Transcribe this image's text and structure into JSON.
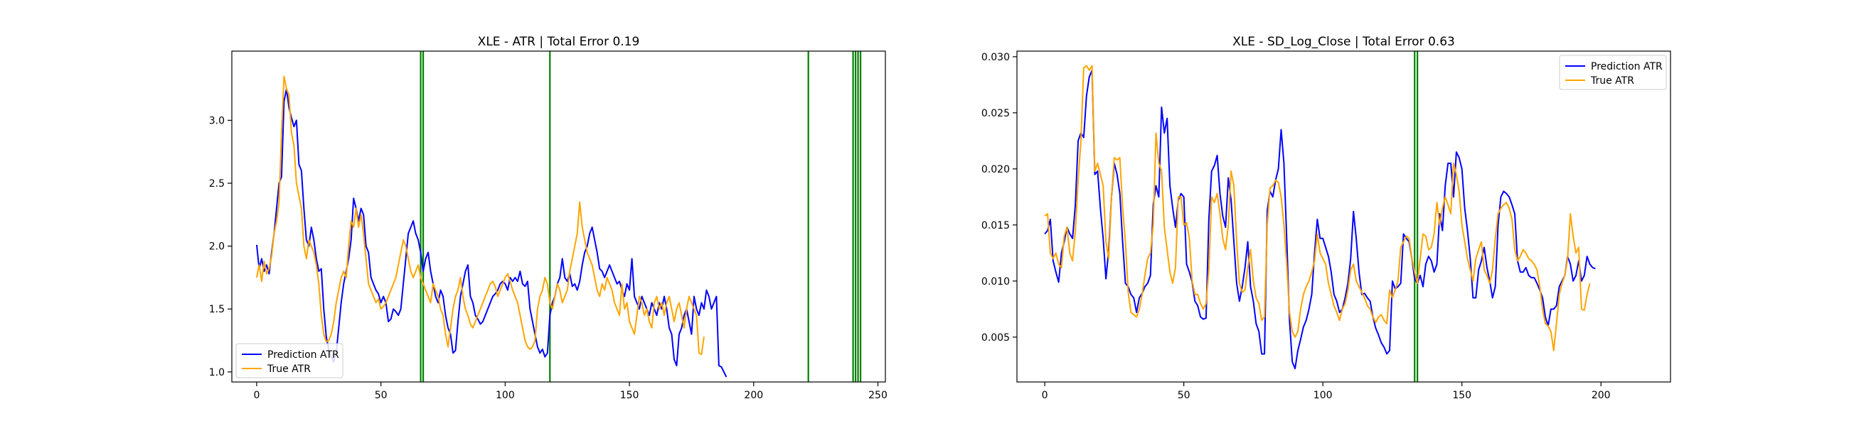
{
  "chart_data": [
    {
      "type": "line",
      "title": "XLE - ATR | Total Error 0.19",
      "xlabel": "",
      "ylabel": "",
      "xlim": [
        -10,
        253
      ],
      "ylim": [
        0.92,
        3.55
      ],
      "xticks": [
        0,
        50,
        100,
        150,
        200,
        250
      ],
      "yticks": [
        1.0,
        1.5,
        2.0,
        2.5,
        3.0
      ],
      "xtick_labels": [
        "0",
        "50",
        "100",
        "150",
        "200",
        "250"
      ],
      "ytick_labels": [
        "1.0",
        "1.5",
        "2.0",
        "2.5",
        "3.0"
      ],
      "legend_position": "lower-left",
      "grid": false,
      "vlines": [
        66,
        67,
        118,
        222,
        240,
        241,
        242,
        243
      ],
      "vline_color": "#008000",
      "series": [
        {
          "name": "Prediction ATR",
          "color": "#0000ff",
          "values": [
            2.01,
            1.82,
            1.9,
            1.8,
            1.85,
            1.78,
            1.95,
            2.1,
            2.3,
            2.5,
            2.55,
            3.15,
            3.25,
            3.1,
            3.02,
            2.95,
            3.0,
            2.65,
            2.6,
            2.3,
            2.05,
            2.0,
            2.15,
            2.05,
            1.9,
            1.8,
            1.82,
            1.5,
            1.28,
            1.18,
            1.12,
            1.08,
            1.15,
            1.35,
            1.55,
            1.7,
            1.8,
            1.9,
            2.05,
            2.38,
            2.3,
            2.2,
            2.3,
            2.25,
            2.0,
            1.95,
            1.75,
            1.7,
            1.65,
            1.62,
            1.55,
            1.6,
            1.55,
            1.4,
            1.42,
            1.5,
            1.48,
            1.45,
            1.5,
            1.7,
            1.9,
            2.1,
            2.15,
            2.2,
            2.1,
            2.05,
            1.95,
            1.8,
            1.9,
            1.95,
            1.8,
            1.7,
            1.6,
            1.55,
            1.65,
            1.6,
            1.45,
            1.35,
            1.3,
            1.15,
            1.17,
            1.4,
            1.6,
            1.7,
            1.8,
            1.85,
            1.6,
            1.55,
            1.45,
            1.42,
            1.38,
            1.4,
            1.45,
            1.5,
            1.55,
            1.6,
            1.62,
            1.65,
            1.7,
            1.72,
            1.7,
            1.65,
            1.75,
            1.72,
            1.75,
            1.72,
            1.8,
            1.7,
            1.68,
            1.72,
            1.5,
            1.4,
            1.3,
            1.2,
            1.15,
            1.18,
            1.12,
            1.15,
            1.45,
            1.55,
            1.6,
            1.7,
            1.75,
            1.9,
            1.75,
            1.72,
            1.78,
            1.68,
            1.7,
            1.65,
            1.72,
            1.85,
            1.95,
            2.0,
            2.1,
            2.15,
            2.05,
            1.95,
            1.82,
            1.8,
            1.75,
            1.8,
            1.85,
            1.8,
            1.75,
            1.7,
            1.72,
            1.65,
            1.6,
            1.7,
            1.65,
            1.9,
            1.6,
            1.55,
            1.5,
            1.6,
            1.55,
            1.5,
            1.45,
            1.55,
            1.5,
            1.45,
            1.55,
            1.5,
            1.6,
            1.5,
            1.35,
            1.3,
            1.1,
            1.05,
            1.3,
            1.35,
            1.45,
            1.5,
            1.4,
            1.3,
            1.6,
            1.5,
            1.45,
            1.55,
            1.5,
            1.65,
            1.6,
            1.5,
            1.55,
            1.6,
            1.05,
            1.04,
            1.0,
            0.96
          ]
        },
        {
          "name": "True ATR",
          "color": "#ffa500",
          "values": [
            1.75,
            1.85,
            1.72,
            1.88,
            1.78,
            1.82,
            1.92,
            2.1,
            2.2,
            2.35,
            2.9,
            3.35,
            3.25,
            3.2,
            2.9,
            2.8,
            2.5,
            2.4,
            2.3,
            2.0,
            1.9,
            2.05,
            2.0,
            1.95,
            1.85,
            1.7,
            1.45,
            1.3,
            1.24,
            1.25,
            1.3,
            1.4,
            1.55,
            1.65,
            1.75,
            1.8,
            1.75,
            2.0,
            2.2,
            2.15,
            2.3,
            2.15,
            2.25,
            2.1,
            1.9,
            1.7,
            1.65,
            1.6,
            1.55,
            1.58,
            1.5,
            1.52,
            1.55,
            1.6,
            1.65,
            1.7,
            1.75,
            1.85,
            1.95,
            2.05,
            2.0,
            1.9,
            1.8,
            1.75,
            1.8,
            1.85,
            1.75,
            1.7,
            1.65,
            1.6,
            1.55,
            1.7,
            1.65,
            1.6,
            1.5,
            1.45,
            1.3,
            1.2,
            1.35,
            1.5,
            1.6,
            1.65,
            1.75,
            1.6,
            1.5,
            1.45,
            1.38,
            1.35,
            1.4,
            1.45,
            1.5,
            1.55,
            1.6,
            1.65,
            1.7,
            1.72,
            1.68,
            1.6,
            1.65,
            1.7,
            1.75,
            1.78,
            1.72,
            1.65,
            1.6,
            1.55,
            1.45,
            1.35,
            1.25,
            1.2,
            1.18,
            1.2,
            1.25,
            1.5,
            1.6,
            1.65,
            1.75,
            1.7,
            1.55,
            1.5,
            1.6,
            1.7,
            1.65,
            1.55,
            1.6,
            1.65,
            1.8,
            1.9,
            2.0,
            2.1,
            2.35,
            2.15,
            2.05,
            1.95,
            1.9,
            1.85,
            1.75,
            1.65,
            1.6,
            1.7,
            1.65,
            1.75,
            1.7,
            1.65,
            1.55,
            1.5,
            1.45,
            1.7,
            1.5,
            1.55,
            1.4,
            1.35,
            1.3,
            1.45,
            1.6,
            1.55,
            1.45,
            1.5,
            1.4,
            1.35,
            1.55,
            1.6,
            1.5,
            1.55,
            1.45,
            1.55,
            1.6,
            1.5,
            1.4,
            1.5,
            1.55,
            1.45,
            1.35,
            1.5,
            1.6,
            1.55,
            1.5,
            1.45,
            1.15,
            1.14,
            1.28
          ]
        }
      ]
    },
    {
      "type": "line",
      "title": "XLE - SD_Log_Close | Total Error 0.63",
      "xlabel": "",
      "ylabel": "",
      "xlim": [
        -10,
        225
      ],
      "ylim": [
        0.001,
        0.0305
      ],
      "xticks": [
        0,
        50,
        100,
        150,
        200
      ],
      "yticks": [
        0.005,
        0.01,
        0.015,
        0.02,
        0.025,
        0.03
      ],
      "xtick_labels": [
        "0",
        "50",
        "100",
        "150",
        "200"
      ],
      "ytick_labels": [
        "0.005",
        "0.010",
        "0.015",
        "0.020",
        "0.025",
        "0.030"
      ],
      "legend_position": "upper-right",
      "grid": false,
      "vlines": [
        133,
        134
      ],
      "vline_color": "#008000",
      "series": [
        {
          "name": "Prediction ATR",
          "color": "#0000ff",
          "values": [
            0.0142,
            0.0145,
            0.0155,
            0.0118,
            0.0108,
            0.0099,
            0.0125,
            0.0135,
            0.0148,
            0.0142,
            0.0138,
            0.0168,
            0.0225,
            0.0232,
            0.0228,
            0.0265,
            0.0282,
            0.0288,
            0.0195,
            0.0198,
            0.0165,
            0.0138,
            0.0102,
            0.0128,
            0.0175,
            0.0205,
            0.0195,
            0.0178,
            0.0135,
            0.0098,
            0.0095,
            0.0088,
            0.0085,
            0.0072,
            0.0085,
            0.0089,
            0.0095,
            0.0098,
            0.0105,
            0.0168,
            0.0185,
            0.0175,
            0.0255,
            0.0232,
            0.0245,
            0.0185,
            0.0165,
            0.0148,
            0.0172,
            0.0178,
            0.0175,
            0.0115,
            0.0108,
            0.0099,
            0.0082,
            0.0078,
            0.0068,
            0.0066,
            0.0067,
            0.0155,
            0.0198,
            0.0203,
            0.0212,
            0.0178,
            0.0158,
            0.0148,
            0.0192,
            0.0172,
            0.0135,
            0.0098,
            0.0082,
            0.0095,
            0.0112,
            0.0135,
            0.0095,
            0.0082,
            0.0062,
            0.0055,
            0.0035,
            0.0035,
            0.0163,
            0.018,
            0.0175,
            0.019,
            0.02,
            0.0235,
            0.0205,
            0.0138,
            0.0065,
            0.0028,
            0.0022,
            0.0038,
            0.0048,
            0.0059,
            0.0065,
            0.0075,
            0.0088,
            0.0125,
            0.0155,
            0.0138,
            0.0138,
            0.013,
            0.0122,
            0.0108,
            0.0088,
            0.0082,
            0.0072,
            0.0075,
            0.0085,
            0.0098,
            0.012,
            0.0162,
            0.0138,
            0.0108,
            0.0088,
            0.0089,
            0.0085,
            0.0082,
            0.0068,
            0.0058,
            0.0052,
            0.0045,
            0.0041,
            0.0035,
            0.0038,
            0.01,
            0.0093,
            0.0095,
            0.0098,
            0.0142,
            0.0138,
            0.0135,
            0.012,
            0.0102,
            0.0098,
            0.0105,
            0.0095,
            0.0115,
            0.0122,
            0.0118,
            0.0108,
            0.0115,
            0.016,
            0.0145,
            0.0185,
            0.0205,
            0.0205,
            0.0175,
            0.0215,
            0.021,
            0.02,
            0.0165,
            0.0145,
            0.012,
            0.0085,
            0.0085,
            0.011,
            0.0118,
            0.013,
            0.0112,
            0.01,
            0.0085,
            0.0095,
            0.015,
            0.0175,
            0.018,
            0.0178,
            0.0175,
            0.0168,
            0.016,
            0.0118,
            0.0108,
            0.0108,
            0.0112,
            0.0105,
            0.0103,
            0.0103,
            0.0098,
            0.0092,
            0.0085,
            0.0068,
            0.006,
            0.0075,
            0.0075,
            0.0078,
            0.0095,
            0.01,
            0.0105,
            0.0122,
            0.0115,
            0.01,
            0.0105,
            0.0118,
            0.01,
            0.0105,
            0.0122,
            0.0115,
            0.0112,
            0.0111
          ]
        },
        {
          "name": "True ATR",
          "color": "#ffa500",
          "values": [
            0.0158,
            0.016,
            0.0125,
            0.012,
            0.0125,
            0.0115,
            0.0112,
            0.014,
            0.0148,
            0.0125,
            0.0118,
            0.0145,
            0.019,
            0.0225,
            0.029,
            0.0292,
            0.0288,
            0.0292,
            0.0198,
            0.0205,
            0.0195,
            0.0185,
            0.0135,
            0.012,
            0.0175,
            0.021,
            0.0208,
            0.021,
            0.0165,
            0.0135,
            0.009,
            0.0072,
            0.007,
            0.0068,
            0.0075,
            0.0088,
            0.0105,
            0.012,
            0.0125,
            0.015,
            0.0232,
            0.0205,
            0.0198,
            0.0148,
            0.0128,
            0.0108,
            0.0098,
            0.0112,
            0.0175,
            0.0175,
            0.015,
            0.0152,
            0.0138,
            0.01,
            0.0088,
            0.0088,
            0.008,
            0.0075,
            0.008,
            0.011,
            0.0175,
            0.017,
            0.0178,
            0.016,
            0.0138,
            0.0128,
            0.015,
            0.0198,
            0.0185,
            0.0135,
            0.0098,
            0.009,
            0.0092,
            0.0112,
            0.0128,
            0.01,
            0.0085,
            0.008,
            0.0065,
            0.0068,
            0.015,
            0.0183,
            0.0185,
            0.019,
            0.0188,
            0.0175,
            0.015,
            0.0115,
            0.0072,
            0.0055,
            0.005,
            0.0055,
            0.0075,
            0.0088,
            0.0095,
            0.01,
            0.0108,
            0.0118,
            0.0142,
            0.0125,
            0.012,
            0.0115,
            0.0098,
            0.0088,
            0.0078,
            0.0072,
            0.0065,
            0.0075,
            0.008,
            0.0092,
            0.011,
            0.0115,
            0.01,
            0.0095,
            0.009,
            0.0085,
            0.0078,
            0.0075,
            0.0068,
            0.0063,
            0.0068,
            0.007,
            0.0065,
            0.0062,
            0.0092,
            0.0085,
            0.0092,
            0.01,
            0.013,
            0.0135,
            0.014,
            0.0138,
            0.012,
            0.0108,
            0.0098,
            0.012,
            0.0142,
            0.014,
            0.0128,
            0.013,
            0.0142,
            0.017,
            0.015,
            0.0165,
            0.0175,
            0.0168,
            0.016,
            0.0205,
            0.0195,
            0.018,
            0.015,
            0.0135,
            0.012,
            0.011,
            0.01,
            0.012,
            0.0128,
            0.0135,
            0.011,
            0.0105,
            0.0098,
            0.011,
            0.0138,
            0.016,
            0.0165,
            0.0168,
            0.017,
            0.0165,
            0.0155,
            0.0128,
            0.0118,
            0.0122,
            0.0128,
            0.0125,
            0.012,
            0.0118,
            0.0115,
            0.011,
            0.0095,
            0.0075,
            0.0062,
            0.006,
            0.0055,
            0.0038,
            0.0062,
            0.0088,
            0.0098,
            0.0105,
            0.012,
            0.016,
            0.014,
            0.0125,
            0.013,
            0.0075,
            0.0074,
            0.0088,
            0.0098
          ]
        }
      ]
    }
  ]
}
